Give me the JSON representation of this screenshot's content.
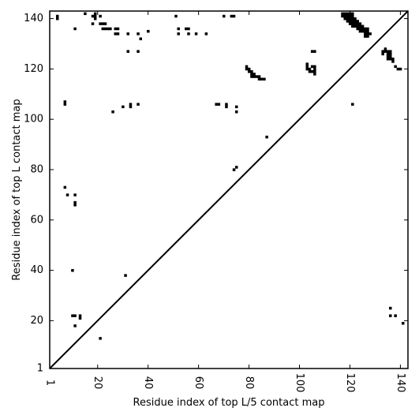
{
  "chart_data": {
    "type": "heatmap",
    "title": "",
    "xlabel": "Residue index of top L/5 contact map",
    "ylabel": "Residue index of top L contact map",
    "xlim": [
      1,
      143
    ],
    "ylim": [
      1,
      143
    ],
    "x_ticks": [
      1,
      20,
      40,
      60,
      80,
      100,
      120,
      140
    ],
    "y_ticks": [
      1,
      20,
      40,
      60,
      80,
      100,
      120,
      140
    ],
    "grid": false,
    "diagonal": {
      "from": [
        1,
        1
      ],
      "to": [
        143,
        143
      ],
      "color": "#000000"
    },
    "cell_color": "#000000",
    "contacts": [
      [
        4,
        140
      ],
      [
        4,
        141
      ],
      [
        11,
        136
      ],
      [
        15,
        142
      ],
      [
        18,
        138
      ],
      [
        18,
        141
      ],
      [
        19,
        140
      ],
      [
        19,
        141
      ],
      [
        19,
        142
      ],
      [
        21,
        141
      ],
      [
        21,
        138
      ],
      [
        22,
        138
      ],
      [
        23,
        138
      ],
      [
        22,
        136
      ],
      [
        23,
        136
      ],
      [
        24,
        136
      ],
      [
        25,
        136
      ],
      [
        27,
        136
      ],
      [
        28,
        136
      ],
      [
        27,
        134
      ],
      [
        28,
        134
      ],
      [
        32,
        134
      ],
      [
        36,
        134
      ],
      [
        37,
        132
      ],
      [
        40,
        135
      ],
      [
        51,
        141
      ],
      [
        52,
        136
      ],
      [
        55,
        136
      ],
      [
        56,
        136
      ],
      [
        52,
        134
      ],
      [
        56,
        134
      ],
      [
        59,
        134
      ],
      [
        63,
        134
      ],
      [
        70,
        141
      ],
      [
        73,
        141
      ],
      [
        74,
        141
      ],
      [
        32,
        127
      ],
      [
        36,
        127
      ],
      [
        7,
        107
      ],
      [
        7,
        106
      ],
      [
        26,
        103
      ],
      [
        30,
        105
      ],
      [
        33,
        106
      ],
      [
        33,
        105
      ],
      [
        36,
        106
      ],
      [
        67,
        106
      ],
      [
        68,
        106
      ],
      [
        71,
        106
      ],
      [
        71,
        105
      ],
      [
        75,
        105
      ],
      [
        75,
        103
      ],
      [
        87,
        93
      ],
      [
        75,
        81
      ],
      [
        74,
        80
      ],
      [
        7,
        73
      ],
      [
        8,
        70
      ],
      [
        11,
        70
      ],
      [
        11,
        67
      ],
      [
        11,
        66
      ],
      [
        10,
        40
      ],
      [
        31,
        38
      ],
      [
        10,
        22
      ],
      [
        11,
        22
      ],
      [
        13,
        22
      ],
      [
        13,
        21
      ],
      [
        11,
        18
      ],
      [
        21,
        13
      ],
      [
        79,
        121
      ],
      [
        79,
        120
      ],
      [
        80,
        120
      ],
      [
        80,
        119
      ],
      [
        81,
        119
      ],
      [
        81,
        118
      ],
      [
        82,
        118
      ],
      [
        81,
        117
      ],
      [
        82,
        117
      ],
      [
        83,
        117
      ],
      [
        84,
        117
      ],
      [
        84,
        116
      ],
      [
        85,
        116
      ],
      [
        86,
        116
      ],
      [
        103,
        122
      ],
      [
        103,
        121
      ],
      [
        103,
        120
      ],
      [
        104,
        120
      ],
      [
        104,
        119
      ],
      [
        105,
        119
      ],
      [
        105,
        121
      ],
      [
        106,
        121
      ],
      [
        106,
        120
      ],
      [
        106,
        119
      ],
      [
        106,
        118
      ],
      [
        105,
        127
      ],
      [
        106,
        127
      ],
      [
        121,
        106
      ],
      [
        117,
        142
      ],
      [
        118,
        142
      ],
      [
        119,
        142
      ],
      [
        120,
        142
      ],
      [
        121,
        142
      ],
      [
        117,
        141
      ],
      [
        118,
        141
      ],
      [
        119,
        141
      ],
      [
        120,
        141
      ],
      [
        121,
        141
      ],
      [
        118,
        140
      ],
      [
        119,
        140
      ],
      [
        120,
        140
      ],
      [
        121,
        140
      ],
      [
        122,
        140
      ],
      [
        119,
        139
      ],
      [
        120,
        139
      ],
      [
        121,
        139
      ],
      [
        122,
        139
      ],
      [
        123,
        139
      ],
      [
        120,
        138
      ],
      [
        121,
        138
      ],
      [
        122,
        138
      ],
      [
        123,
        138
      ],
      [
        124,
        138
      ],
      [
        121,
        137
      ],
      [
        122,
        137
      ],
      [
        123,
        137
      ],
      [
        124,
        137
      ],
      [
        125,
        137
      ],
      [
        123,
        136
      ],
      [
        124,
        136
      ],
      [
        125,
        136
      ],
      [
        126,
        136
      ],
      [
        127,
        136
      ],
      [
        124,
        135
      ],
      [
        125,
        135
      ],
      [
        126,
        135
      ],
      [
        127,
        135
      ],
      [
        126,
        134
      ],
      [
        127,
        134
      ],
      [
        128,
        134
      ],
      [
        126,
        133
      ],
      [
        127,
        133
      ],
      [
        133,
        127
      ],
      [
        133,
        126
      ],
      [
        134,
        128
      ],
      [
        134,
        127
      ],
      [
        135,
        127
      ],
      [
        135,
        126
      ],
      [
        136,
        127
      ],
      [
        136,
        126
      ],
      [
        135,
        125
      ],
      [
        136,
        125
      ],
      [
        135,
        124
      ],
      [
        136,
        124
      ],
      [
        137,
        124
      ],
      [
        137,
        123
      ],
      [
        138,
        121
      ],
      [
        139,
        120
      ],
      [
        140,
        120
      ],
      [
        136,
        25
      ],
      [
        136,
        22
      ],
      [
        138,
        22
      ],
      [
        141,
        19
      ]
    ]
  }
}
